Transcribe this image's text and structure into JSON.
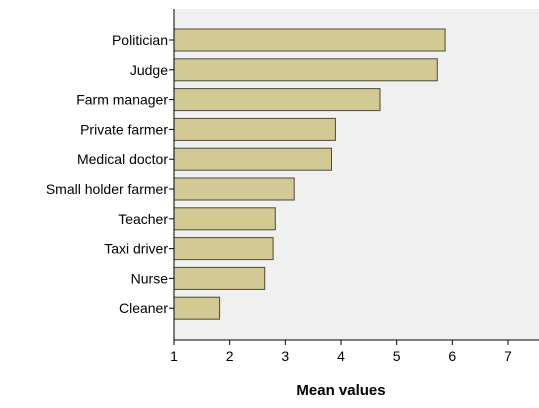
{
  "chart_data": {
    "type": "bar",
    "orientation": "horizontal",
    "categories": [
      "Politician",
      "Judge",
      "Farm manager",
      "Private farmer",
      "Medical doctor",
      "Small holder farmer",
      "Teacher",
      "Taxi driver",
      "Nurse",
      "Cleaner"
    ],
    "values": [
      5.87,
      5.73,
      4.7,
      3.9,
      3.83,
      3.16,
      2.82,
      2.78,
      2.63,
      1.82
    ],
    "title": "",
    "xlabel": "Mean values",
    "ylabel": "",
    "xlim": [
      1,
      7.7
    ],
    "xticks": [
      1,
      2,
      3,
      4,
      5,
      6,
      7
    ],
    "grid": false,
    "colors": {
      "bar_fill": "#d2c994",
      "bar_stroke": "#4d4a3a",
      "plot_bg": "#f0f0f0",
      "axis": "#000000"
    }
  }
}
